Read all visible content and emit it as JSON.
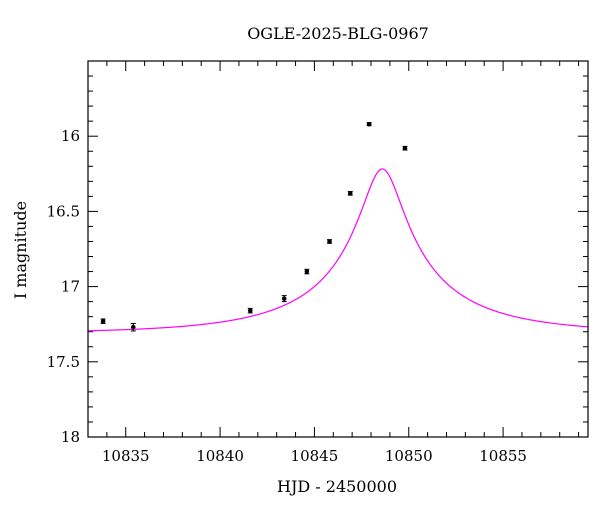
{
  "chart_data": {
    "type": "scatter",
    "title": "OGLE-2025-BLG-0967",
    "xlabel": "HJD - 2450000",
    "ylabel": "I magnitude",
    "xlim": [
      10833.0,
      10859.5
    ],
    "ylim": [
      18.0,
      15.5
    ],
    "y_inverted": true,
    "grid": false,
    "x_ticks": [
      10835,
      10840,
      10845,
      10850,
      10855
    ],
    "x_tick_labels": [
      "10835",
      "10840",
      "10845",
      "10850",
      "10855"
    ],
    "y_ticks": [
      16,
      16.5,
      17,
      17.5,
      18
    ],
    "y_tick_labels": [
      "16",
      "16.5",
      "17",
      "17.5",
      "18"
    ],
    "x_minor_step": 1,
    "y_minor_step": 0.1,
    "series": [
      {
        "kind": "points",
        "x": [
          10833.8,
          10835.4,
          10841.6,
          10843.4,
          10844.6,
          10845.8,
          10846.9,
          10847.9,
          10849.8
        ],
        "y": [
          17.23,
          17.27,
          17.16,
          17.08,
          16.9,
          16.7,
          16.38,
          15.92,
          16.08
        ],
        "yerr": [
          0.015,
          0.025,
          0.015,
          0.02,
          0.015,
          0.012,
          0.012,
          0.01,
          0.012
        ],
        "color": "#000000"
      },
      {
        "kind": "model",
        "color": "#ff00ff",
        "params": {
          "t0": 10848.6,
          "tE": 7.5,
          "u0": 0.14,
          "baseline_mag": 17.31,
          "blend_fraction": 0.28
        }
      }
    ]
  }
}
